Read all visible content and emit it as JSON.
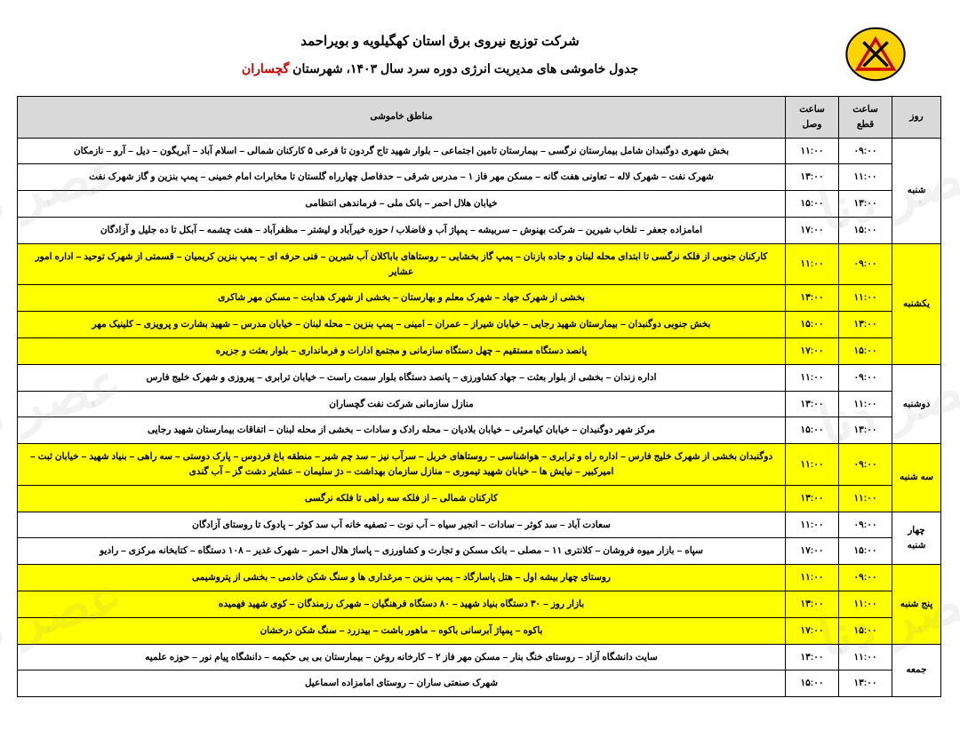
{
  "header": {
    "company": "شرکت توزیع نیروی برق استان کهگیلویه و بویراحمد",
    "title_prefix": "جدول خاموشی های مدیریت انرژی دوره سرد سال ۱۴۰۳، شهرستان ",
    "city": "گچساران"
  },
  "watermark": "عصر دنا",
  "columns": {
    "day": "روز",
    "off": "ساعت قطع",
    "on": "ساعت وصل",
    "area": "مناطق خاموشی"
  },
  "style": {
    "highlight_bg": "#ffff00",
    "header_bg": "#d9d9d9",
    "border_color": "#000000",
    "city_color": "#cc0000",
    "font_family": "Tahoma",
    "font_size_body": 10.5,
    "font_size_title": 15
  },
  "groups": [
    {
      "day": "شنبه",
      "hl": false,
      "rows": [
        {
          "off": "۰۹:۰۰",
          "on": "۱۱:۰۰",
          "area": "بخش شهری دوگنبدان شامل بیمارستان نرگسی – بیمارستان تامین اجتماعی – بلوار شهید تاج گردون تا فرعی ۵ کارکنان شمالی – اسلام آباد – آبریگون – دیل – آرو – نازمکان"
        },
        {
          "off": "۱۱:۰۰",
          "on": "۱۳:۰۰",
          "area": "شهرک نفت – شهرک لاله – تعاونی هفت گانه – مسکن مهر فاز ۱ – مدرس شرقی – حدفاصل چهارراه گلستان تا مخابرات امام خمینی – پمپ بنزین و گاز شهرک نفت"
        },
        {
          "off": "۱۳:۰۰",
          "on": "۱۵:۰۰",
          "area": "خیابان هلال احمر – بانک ملی – فرماندهی انتظامی"
        },
        {
          "off": "۱۵:۰۰",
          "on": "۱۷:۰۰",
          "area": "امامزاده جعفر – تلخاب شیرین – شرکت بهنوش – سربیشه – پمپاژ آب و فاضلاب / حوزه خیرآباد و لیشتر – مظفرآباد – هفت چشمه – آبکل تا ده جلیل و آزادگان"
        }
      ]
    },
    {
      "day": "یکشنبه",
      "hl": true,
      "rows": [
        {
          "off": "۰۹:۰۰",
          "on": "۱۱:۰۰",
          "area": "کارکنان جنوبی از فلکه نرگسی تا ابتدای محله لبنان و جاده بازنان – پمپ گاز بخشایی – روستاهای باباکلان آب شیرین – فنی حرفه ای – پمپ بنزین کریمیان – قسمتی از شهرک توحید – اداره امور عشایر"
        },
        {
          "off": "۱۱:۰۰",
          "on": "۱۳:۰۰",
          "area": "بخشی از شهرک جهاد – شهرک معلم و بهارستان – بخشی از شهرک هدایت – مسکن مهر شاکری"
        },
        {
          "off": "۱۳:۰۰",
          "on": "۱۵:۰۰",
          "area": "بخش جنوبی دوگنبدان – بیمارستان شهید رجایی – خیابان شیراز – عمران – امینی – پمپ بنزین – محله لبنان – خیابان مدرس – شهید بشارت و پرویزی – کلینیک مهر"
        },
        {
          "off": "۱۵:۰۰",
          "on": "۱۷:۰۰",
          "area": "پانصد دستگاه مستقیم – چهل دستگاه سازمانی و مجتمع ادارات و فرمانداری – بلوار بعثت و جزیره"
        }
      ]
    },
    {
      "day": "دوشنبه",
      "hl": false,
      "rows": [
        {
          "off": "۰۹:۰۰",
          "on": "۱۱:۰۰",
          "area": "اداره زندان – بخشی از بلوار بعثت – جهاد کشاورزی – پانصد دستگاه بلوار سمت راست – خیابان ترابری – پیروزی و شهرک خلیج فارس"
        },
        {
          "off": "۱۱:۰۰",
          "on": "۱۳:۰۰",
          "area": "منازل سازمانی شرکت نفت گچساران"
        },
        {
          "off": "۱۳:۰۰",
          "on": "۱۵:۰۰",
          "area": "مرکز شهر دوگنبدان – خیابان کیامرثی – خیابان بلادیان – محله رادک و سادات – بخشی از محله لبنان – اتفاقات بیمارستان شهید رجایی"
        }
      ]
    },
    {
      "day": "سه شنبه",
      "hl": true,
      "rows": [
        {
          "off": "۰۹:۰۰",
          "on": "۱۱:۰۰",
          "area": "دوگنبدان بخشی از شهرک خلیج فارس – اداره راه و ترابری – هواشناسی – روستاهای خربل – سرآب نیز – سد چم شیر – منطقه باغ فردوس – پارک دوستی – سه راهی – بنیاد شهید – خیابان ثبت – امیرکبیر – نیایش ها – خیابان شهید تیموری – منازل سازمان بهداشت – دژ سلیمان – عشایر دشت گز – آب گندی"
        },
        {
          "off": "۱۱:۰۰",
          "on": "۱۳:۰۰",
          "area": "کارکنان شمالی – از فلکه سه راهی تا فلکه نرگسی"
        }
      ]
    },
    {
      "day": "چهار شنبه",
      "hl": false,
      "rows": [
        {
          "off": "۰۹:۰۰",
          "on": "۱۱:۰۰",
          "area": "سعادت آباد – سد کوثر – سادات – انجیر سیاه – آب نوت – تصفیه خانه آب سد کوثر – پادوک تا روستای آزادگان"
        },
        {
          "off": "۱۵:۰۰",
          "on": "۱۷:۰۰",
          "area": "سپاه – بازار میوه فروشان – کلانتری ۱۱ – مصلی – بانک مسکن و تجارت و کشاورزی – پاساژ هلال احمر – شهرک غدیر – ۱۰۸ دستگاه – کتابخانه مرکزی – رادیو"
        }
      ]
    },
    {
      "day": "پنج شنبه",
      "hl": true,
      "rows": [
        {
          "off": "۰۹:۰۰",
          "on": "۱۱:۰۰",
          "area": "روستای چهار بیشه اول – هتل پاسارگاد – پمپ بنزین – مرغداری ها و سنگ شکن خادمی – بخشی از پتروشیمی"
        },
        {
          "off": "۱۱:۰۰",
          "on": "۱۳:۰۰",
          "area": "بازار روز – ۳۰ دستگاه بنیاد شهید – ۸۰ دستگاه فرهنگیان – شهرک رزمندگان – کوی شهید فهمیده"
        },
        {
          "off": "۱۵:۰۰",
          "on": "۱۷:۰۰",
          "area": "باکوه – پمپاژ آبرسانی باکوه – ماهور باشت – بیدزرد – سنگ شکن درخشان"
        }
      ]
    },
    {
      "day": "جمعه",
      "hl": false,
      "rows": [
        {
          "off": "۱۱:۰۰",
          "on": "۱۳:۰۰",
          "area": "سایت دانشگاه آزاد – روستای خنگ بنار – مسکن مهر فاز ۲ – کارخانه روغن – بیمارستان بی بی حکیمه – دانشگاه پیام نور – حوزه علمیه"
        },
        {
          "off": "۱۳:۰۰",
          "on": "۱۵:۰۰",
          "area": "شهرک صنعتی ساران – روستای امامزاده اسماعیل"
        }
      ]
    }
  ]
}
